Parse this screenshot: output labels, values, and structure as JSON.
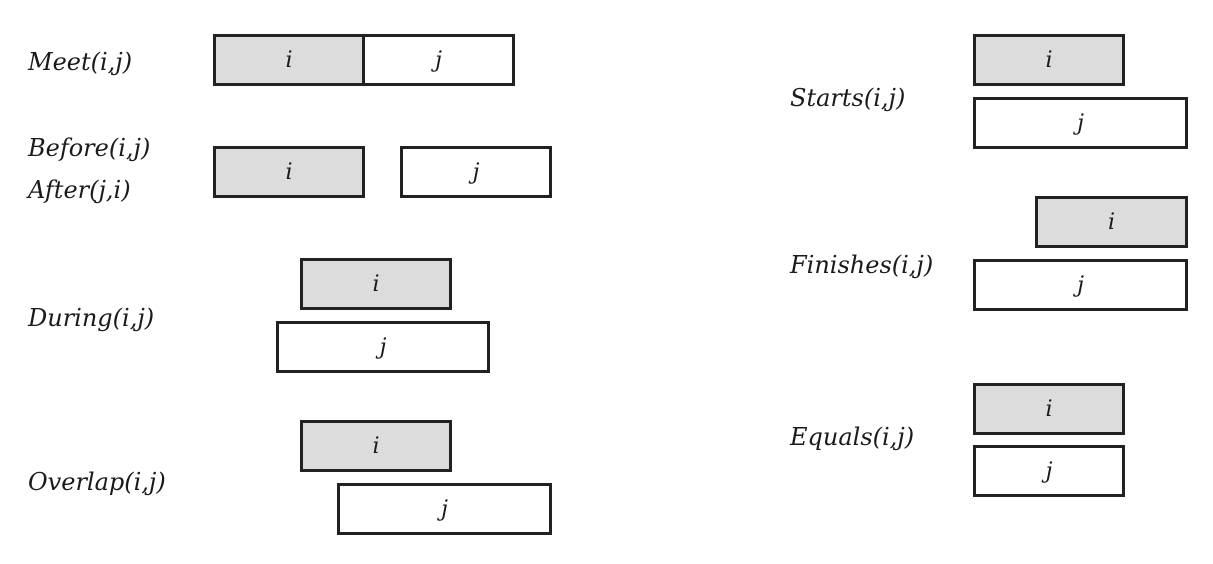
{
  "relations": {
    "meet": {
      "label": "Meet(i,j)",
      "i": "i",
      "j": "j"
    },
    "before": {
      "label": "Before(i,j)",
      "label2": "After(j,i)",
      "i": "i",
      "j": "j"
    },
    "during": {
      "label": "During(i,j)",
      "i": "i",
      "j": "j"
    },
    "overlap": {
      "label": "Overlap(i,j)",
      "i": "i",
      "j": "j"
    },
    "starts": {
      "label": "Starts(i,j)",
      "i": "i",
      "j": "j"
    },
    "finishes": {
      "label": "Finishes(i,j)",
      "i": "i",
      "j": "j"
    },
    "equals": {
      "label": "Equals(i,j)",
      "i": "i",
      "j": "j"
    }
  },
  "colors": {
    "interval_i_fill": "#dcdcdc",
    "interval_j_fill": "#ffffff",
    "border": "#222222"
  }
}
